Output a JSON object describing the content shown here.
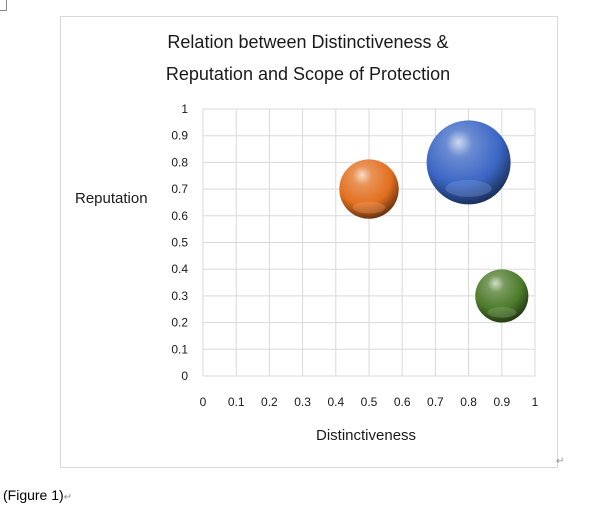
{
  "chart_data": {
    "type": "bubble",
    "title_lines": [
      "Relation between Distinctiveness &",
      "Reputation and Scope of Protection"
    ],
    "xlabel": "Distinctiveness",
    "ylabel": "Reputation",
    "xlim": [
      0,
      1
    ],
    "ylim": [
      0,
      1
    ],
    "x_ticks": [
      "0",
      "0.1",
      "0.2",
      "0.3",
      "0.4",
      "0.5",
      "0.6",
      "0.7",
      "0.8",
      "0.9",
      "1"
    ],
    "y_ticks": [
      "0",
      "0.1",
      "0.2",
      "0.3",
      "0.4",
      "0.5",
      "0.6",
      "0.7",
      "0.8",
      "0.9",
      "1"
    ],
    "grid": true,
    "legend": "none",
    "points": [
      {
        "x": 0.5,
        "y": 0.7,
        "size": 0.5,
        "color": "#e26f1f"
      },
      {
        "x": 0.8,
        "y": 0.8,
        "size": 1.0,
        "color": "#3a66c4"
      },
      {
        "x": 0.9,
        "y": 0.3,
        "size": 0.4,
        "color": "#4c7a2a"
      }
    ]
  },
  "caption": {
    "text": "(Figure  1)",
    "mark": "↵"
  },
  "return_mark": "↵"
}
